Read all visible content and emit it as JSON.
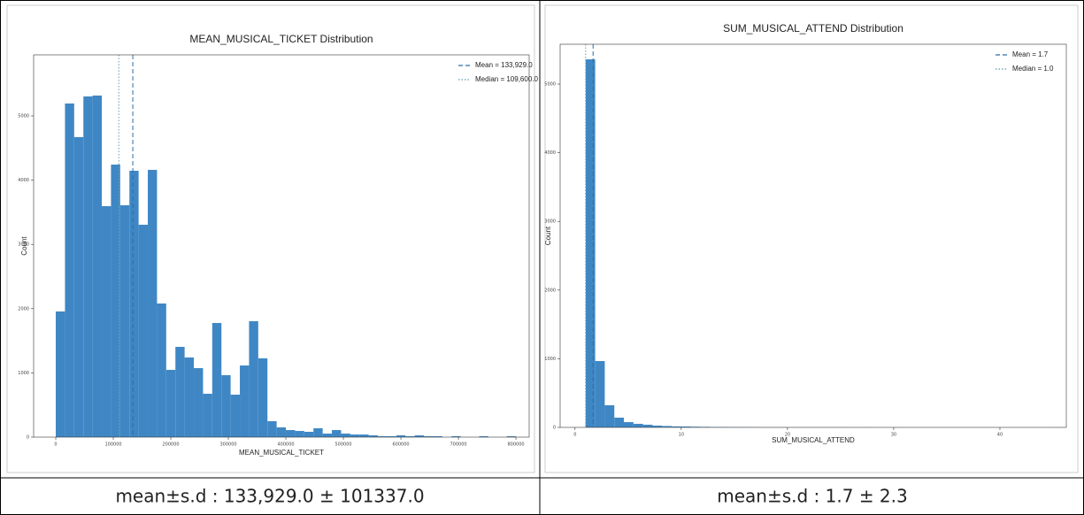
{
  "chart_data": [
    {
      "type": "histogram",
      "title": "MEAN_MUSICAL_TICKET Distribution",
      "xlabel": "MEAN_MUSICAL_TICKET",
      "ylabel": "Count",
      "color": "#3f87c4",
      "bins": [
        0,
        16000,
        32000,
        48000,
        64000,
        80000,
        96000,
        112000,
        128000,
        144000,
        160000,
        176000,
        192000,
        208000,
        224000,
        240000,
        256000,
        272000,
        288000,
        304000,
        320000,
        336000,
        352000,
        368000,
        384000,
        400000,
        416000,
        432000,
        448000,
        464000,
        480000,
        496000,
        512000,
        528000,
        544000,
        560000,
        576000,
        592000,
        608000,
        624000,
        640000,
        656000,
        672000,
        688000,
        704000,
        720000,
        736000,
        752000,
        768000,
        784000,
        800000
      ],
      "values": [
        1956,
        5193,
        4670,
        5303,
        5317,
        3595,
        4242,
        3609,
        4146,
        3306,
        4160,
        2080,
        1047,
        1405,
        1240,
        1074,
        675,
        1777,
        964,
        661,
        1115,
        1804,
        1226,
        248,
        152,
        110,
        96,
        83,
        138,
        55,
        110,
        55,
        41,
        41,
        28,
        14,
        14,
        28,
        14,
        28,
        14,
        14,
        0,
        14,
        0,
        0,
        14,
        0,
        0,
        14
      ],
      "xlim": [
        -38500,
        823000
      ],
      "xticks": [
        0,
        100000,
        200000,
        300000,
        400000,
        500000,
        600000,
        700000,
        800000
      ],
      "ylim": [
        0,
        5950
      ],
      "yticks": [
        0,
        1000,
        2000,
        3000,
        4000,
        5000
      ],
      "vlines": [
        {
          "name": "Mean = 133,929.0",
          "value": 133929,
          "color": "#2a6fa6",
          "style": "dashed"
        },
        {
          "name": "Median = 109,600.0",
          "value": 109600,
          "color": "#5a9fb0",
          "style": "dotted"
        }
      ],
      "legend": "upper right"
    },
    {
      "type": "histogram",
      "title": "SUM_MUSICAL_ATTEND Distribution",
      "xlabel": "SUM_MUSICAL_ATTEND",
      "ylabel": "Count",
      "color": "#3f87c4",
      "bins": [
        1,
        1.9,
        2.8,
        3.7,
        4.6,
        5.5,
        6.4,
        7.3,
        8.2,
        9.1,
        10,
        10.9,
        11.8,
        12.7,
        13.6,
        14.5,
        15.4,
        16.3,
        17.2,
        18.1,
        19,
        19.9,
        20.8,
        21.7,
        22.6,
        23.5,
        24.4,
        25.3,
        26.2,
        27.1,
        28,
        28.9,
        29.8,
        30.7,
        31.6,
        32.5,
        33.4,
        34.3,
        35.2,
        36.1,
        37,
        37.9,
        38.8,
        39.7,
        40.6,
        41.5,
        42.4,
        43.3,
        44.2,
        45.1,
        46
      ],
      "values": [
        5360,
        966,
        322,
        142,
        77,
        52,
        39,
        26,
        20,
        15,
        13,
        10,
        8,
        6,
        5,
        4,
        3,
        3,
        2,
        2,
        2,
        1,
        1,
        1,
        1,
        1,
        1,
        1,
        0,
        1,
        0,
        0,
        1,
        0,
        0,
        0,
        0,
        0,
        0,
        0,
        0,
        0,
        0,
        0,
        0,
        0,
        0,
        0,
        0,
        1
      ],
      "xlim": [
        -1.4,
        46.25
      ],
      "xticks": [
        0,
        10,
        20,
        30,
        40
      ],
      "ylim": [
        0,
        5580
      ],
      "yticks": [
        0,
        1000,
        2000,
        3000,
        4000,
        5000
      ],
      "vlines": [
        {
          "name": "Mean = 1.7",
          "value": 1.7,
          "color": "#2a6fa6",
          "style": "dashed"
        },
        {
          "name": "Median = 1.0",
          "value": 1.0,
          "color": "#5a9fb0",
          "style": "dotted"
        }
      ],
      "legend": "upper right"
    }
  ],
  "captions": [
    "mean±s.d :  133,929.0 ± 101337.0",
    "mean±s.d :  1.7 ± 2.3"
  ]
}
